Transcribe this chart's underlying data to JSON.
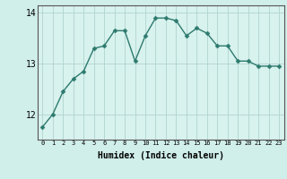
{
  "xlabel": "Humidex (Indice chaleur)",
  "x_values": [
    0,
    1,
    2,
    3,
    4,
    5,
    6,
    7,
    8,
    9,
    10,
    11,
    12,
    13,
    14,
    15,
    16,
    17,
    18,
    19,
    20,
    21,
    22,
    23
  ],
  "y_values": [
    11.75,
    12.0,
    12.45,
    12.7,
    12.85,
    13.3,
    13.35,
    13.65,
    13.65,
    13.05,
    13.55,
    13.9,
    13.9,
    13.85,
    13.55,
    13.7,
    13.6,
    13.35,
    13.35,
    13.05,
    13.05,
    12.95,
    12.95,
    12.95
  ],
  "ylim": [
    11.5,
    14.15
  ],
  "yticks": [
    12,
    13,
    14
  ],
  "ytick_labels": [
    "12",
    "13",
    "14"
  ],
  "background_color": "#d0eeea",
  "line_color": "#2d7a6e",
  "marker_color": "#2d7a6e",
  "grid_color": "#b0d4ce",
  "axis_bg_color": "#d8f2ee",
  "marker": "D",
  "marker_size": 2.5,
  "line_width": 1.0
}
